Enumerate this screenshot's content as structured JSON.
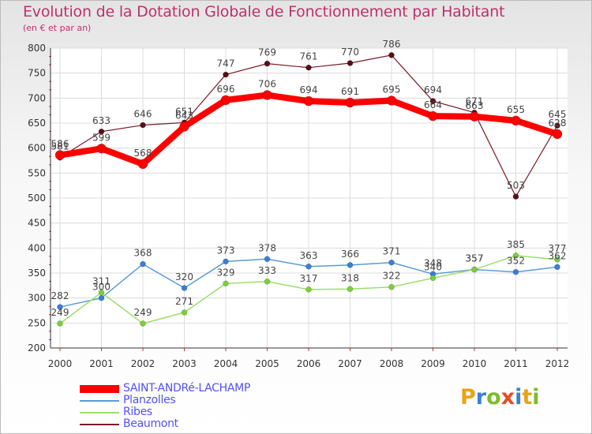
{
  "title": "Evolution de la Dotation Globale de Fonctionnement par Habitant",
  "subtitle": "(en € et par an)",
  "logo": {
    "letters": [
      "P",
      "r",
      "o",
      "x",
      "i",
      "t",
      "i"
    ],
    "colors": [
      "#e8a317",
      "#3a7fd5",
      "#7bbd28",
      "#e44d26",
      "#3a7fd5",
      "#e8a317",
      "#7bbd28"
    ]
  },
  "chart_data": {
    "type": "line",
    "title": "Evolution de la Dotation Globale de Fonctionnement par Habitant",
    "subtitle": "(en € et par an)",
    "xlabel": "",
    "ylabel": "",
    "categories": [
      "2000",
      "2001",
      "2002",
      "2003",
      "2004",
      "2005",
      "2006",
      "2007",
      "2008",
      "2009",
      "2010",
      "2011",
      "2012"
    ],
    "ylim": [
      200,
      800
    ],
    "yticks": [
      "200",
      "250",
      "300",
      "350",
      "400",
      "450",
      "500",
      "550",
      "600",
      "650",
      "700",
      "750",
      "800"
    ],
    "grid": true,
    "legend_position": "bottom-left",
    "series": [
      {
        "name": "SAINT-ANDRé-LACHAMP",
        "color": "#ff0000",
        "values": [
          586,
          599,
          568,
          643,
          696,
          706,
          694,
          691,
          695,
          664,
          663,
          655,
          628
        ]
      },
      {
        "name": "Planzolles",
        "color": "#5b9bd5",
        "values": [
          282,
          300,
          368,
          320,
          373,
          378,
          363,
          366,
          371,
          348,
          357,
          352,
          362
        ]
      },
      {
        "name": "Ribes",
        "color": "#9dde6a",
        "values": [
          249,
          311,
          249,
          271,
          329,
          333,
          317,
          318,
          322,
          340,
          357,
          385,
          377
        ]
      },
      {
        "name": "Beaumont",
        "color": "#7a1c26",
        "values": [
          581,
          633,
          646,
          651,
          747,
          769,
          761,
          770,
          786,
          694,
          671,
          503,
          645
        ]
      }
    ],
    "data_labels": {
      "SAINT-ANDRé-LACHAMP": [
        "586",
        "599",
        "568",
        "643",
        "696",
        "706",
        "694",
        "691",
        "695",
        "664",
        "663",
        "655",
        "628"
      ],
      "Planzolles": [
        "282",
        "300",
        "368",
        "320",
        "373",
        "378",
        "363",
        "366",
        "371",
        "348",
        "357",
        "352",
        "362"
      ],
      "Ribes": [
        "249",
        "311",
        "249",
        "271",
        "329",
        "333",
        "317",
        "318",
        "322",
        "340",
        "357",
        "385",
        "377"
      ],
      "Beaumont": [
        "581",
        "633",
        "646",
        "651",
        "747",
        "769",
        "761",
        "770",
        "786",
        "694",
        "671",
        "503",
        "645"
      ]
    }
  }
}
